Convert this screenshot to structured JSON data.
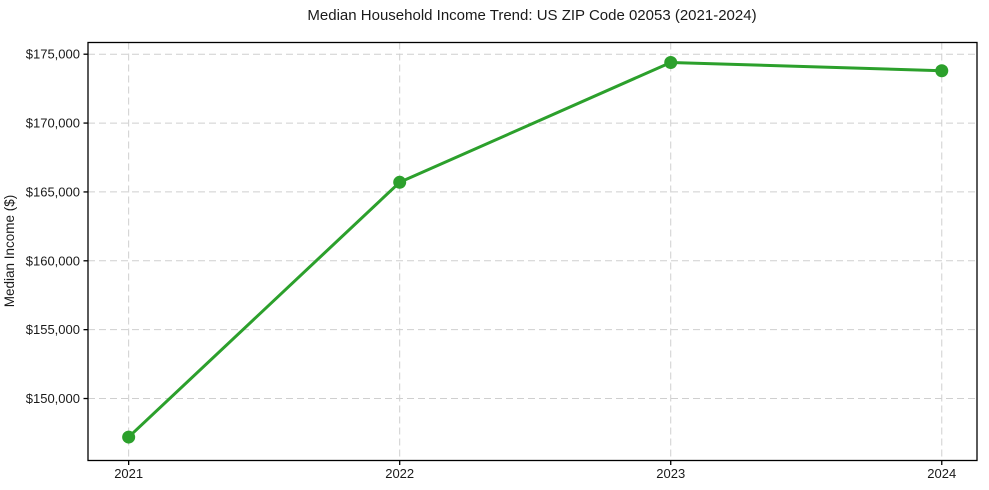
{
  "chart_data": {
    "type": "line",
    "title": "Median Household Income Trend: US ZIP Code 02053 (2021-2024)",
    "xlabel": "",
    "ylabel": "Median Income ($)",
    "x": [
      2021,
      2022,
      2023,
      2024
    ],
    "series": [
      {
        "name": "Median household income",
        "values": [
          147200,
          165700,
          174400,
          173800
        ]
      }
    ],
    "xtick_labels": [
      "2021",
      "2022",
      "2023",
      "2024"
    ],
    "yticks": [
      150000,
      155000,
      160000,
      165000,
      170000,
      175000
    ],
    "ytick_labels": [
      "$150,000",
      "$155,000",
      "$160,000",
      "$165,000",
      "$170,000",
      "$175,000"
    ],
    "xlim": [
      2020.85,
      2024.13
    ],
    "ylim": [
      145500,
      175850
    ],
    "grid": true,
    "grid_style": "dashed",
    "legend": "none",
    "colors": {
      "line": "#2ca02c",
      "marker": "#2ca02c",
      "grid": "#cfcfcf",
      "spine": "#000000",
      "text": "#1a1a1a",
      "background": "#ffffff"
    }
  }
}
